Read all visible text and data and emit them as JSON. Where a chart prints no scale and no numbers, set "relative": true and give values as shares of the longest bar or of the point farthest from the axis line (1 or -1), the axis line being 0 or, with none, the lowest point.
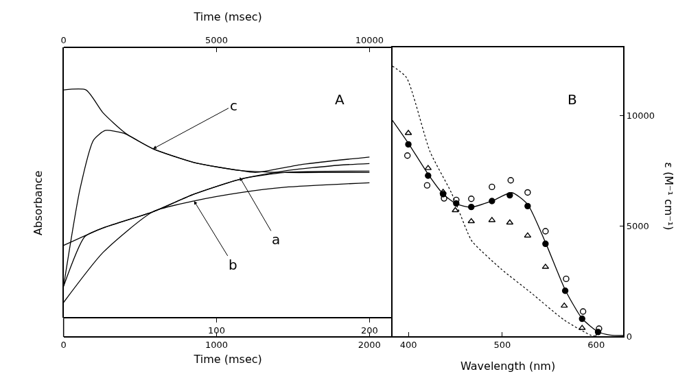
{
  "chart_data": [
    {
      "type": "line",
      "relative": true,
      "ylabel": "Absorbance",
      "xlabel": "Time (msec)",
      "x2label": "Time (msec)",
      "xlim": [
        0,
        2150
      ],
      "xticks": [
        0,
        1000,
        2000
      ],
      "x2lim": [
        0,
        10750
      ],
      "x2ticks": [
        0,
        5000,
        10000
      ],
      "marker": "none",
      "line_style": "solid",
      "series": [
        {
          "color": "#000000",
          "x": [
            0,
            147,
            259,
            406,
            585,
            853,
            1152,
            1446,
            1746,
            2000
          ],
          "values": [
            1.0,
            1.0,
            0.899,
            0.81,
            0.742,
            0.682,
            0.647,
            0.638,
            0.638,
            0.638
          ]
        },
        {
          "color": "#000000",
          "x": [
            0,
            107,
            196,
            272,
            393,
            585,
            853,
            1152,
            1254,
            1567,
            2000
          ],
          "values": [
            0.139,
            0.564,
            0.78,
            0.822,
            0.81,
            0.742,
            0.682,
            0.647,
            0.638,
            0.674,
            0.706
          ]
        },
        {
          "color": "#000000",
          "x": [
            0,
            259,
            585,
            853,
            1152,
            1446,
            2000
          ],
          "values": [
            0.318,
            0.395,
            0.466,
            0.543,
            0.608,
            0.638,
            0.644
          ]
        },
        {
          "color": "#000000",
          "x": [
            0,
            259,
            585,
            853,
            1152,
            1446,
            2000
          ],
          "values": [
            0.068,
            0.288,
            0.466,
            0.513,
            0.549,
            0.573,
            0.593
          ]
        },
        {
          "color": "#000000",
          "x": [
            0,
            138,
            259,
            585,
            853,
            1152,
            1446,
            1800,
            2000
          ],
          "values": [
            0.139,
            0.356,
            0.395,
            0.466,
            0.543,
            0.608,
            0.645,
            0.67,
            0.677
          ]
        }
      ],
      "annotations": [
        "A",
        "100",
        "200",
        {
          "text": "c",
          "x": 585,
          "y": 0.742
        },
        {
          "text": "a",
          "x": 1152,
          "y": 0.617
        },
        {
          "text": "b",
          "x": 853,
          "y": 0.513
        }
      ]
    },
    {
      "type": "scatter",
      "xlabel": "Wavelength (nm)",
      "ylabel": "ε (M⁻¹ cm⁻¹)",
      "xlim": [
        383,
        629
      ],
      "xticks": [
        400,
        500,
        600
      ],
      "ylim": [
        0,
        13100
      ],
      "yticks": [
        0,
        5000,
        10000
      ],
      "series": [
        {
          "type": "line",
          "color": "#000000",
          "marker": "none",
          "line_style": "solid",
          "x": [
            383,
            400,
            421,
            437,
            451,
            467,
            489,
            510,
            527,
            546,
            567,
            585,
            602,
            615,
            629
          ],
          "values": [
            9790,
            8750,
            7350,
            6450,
            6000,
            5850,
            6130,
            6510,
            5980,
            4250,
            2100,
            800,
            200,
            50,
            30
          ]
        },
        {
          "type": "line",
          "color": "#000000",
          "marker": "none",
          "line_style": "dotted",
          "x": [
            383,
            398,
            423,
            446,
            463,
            468,
            499,
            530,
            566,
            594,
            600
          ],
          "values": [
            12250,
            11730,
            8380,
            6490,
            4710,
            4290,
            3040,
            1990,
            730,
            50,
            0
          ]
        },
        {
          "type": "scatter",
          "color": "#000000",
          "marker": "circle",
          "x": [
            400,
            421,
            437,
            451,
            467,
            489,
            508,
            527,
            546,
            567,
            585,
            602
          ],
          "values": [
            8700,
            7280,
            6440,
            6020,
            5860,
            6130,
            6390,
            5900,
            4190,
            2060,
            790,
            190
          ]
        },
        {
          "type": "scatter",
          "color": "#000000",
          "marker": "circle-open",
          "x": [
            399,
            420,
            438,
            451,
            467,
            489,
            509,
            527,
            546,
            568,
            586,
            603
          ],
          "values": [
            8190,
            6840,
            6250,
            6180,
            6230,
            6770,
            7070,
            6520,
            4760,
            2600,
            1120,
            340
          ]
        },
        {
          "type": "scatter",
          "color": "#000000",
          "marker": "triangle-open",
          "x": [
            400,
            421,
            437,
            450,
            467,
            489,
            508,
            527,
            546,
            566,
            585
          ],
          "values": [
            9210,
            7620,
            6540,
            5710,
            5210,
            5260,
            5150,
            4560,
            3140,
            1380,
            370
          ]
        }
      ],
      "annotations": [
        "B"
      ]
    }
  ]
}
